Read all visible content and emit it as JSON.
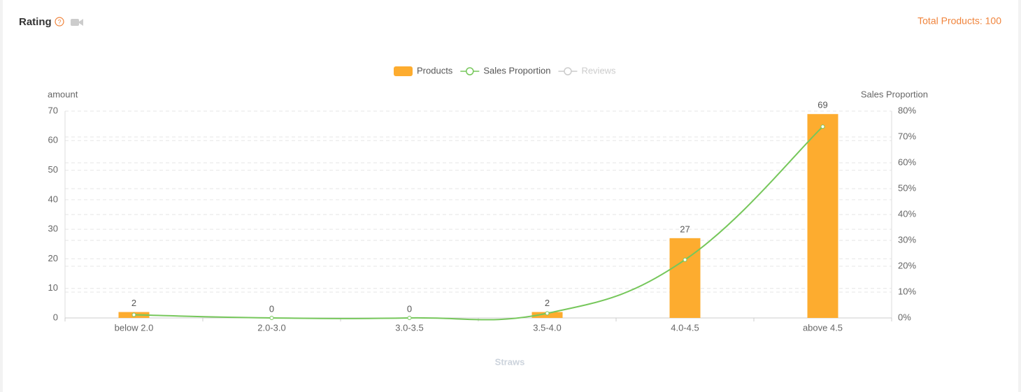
{
  "header": {
    "title": "Rating",
    "total": "Total Products: 100"
  },
  "chart_data": {
    "type": "bar_line",
    "categories": [
      "below 2.0",
      "2.0-3.0",
      "3.0-3.5",
      "3.5-4.0",
      "4.0-4.5",
      "above 4.5"
    ],
    "series": [
      {
        "name": "Products",
        "color": "#fdac2f",
        "type": "bar",
        "values": [
          2,
          0,
          0,
          2,
          27,
          69
        ]
      },
      {
        "name": "Sales Proportion",
        "color": "#76c75b",
        "type": "line",
        "axis": "y2",
        "values": [
          1.2,
          0,
          0,
          1.8,
          22.5,
          74
        ]
      },
      {
        "name": "Reviews",
        "color": "#d5d5d5",
        "type": "line",
        "hidden": true
      }
    ],
    "ylabel": "amount",
    "y2label": "Sales Proportion",
    "xlabel": "Straws",
    "ylim": [
      0,
      70
    ],
    "yticks": [
      0,
      10,
      20,
      30,
      40,
      50,
      60,
      70
    ],
    "y2lim": [
      0,
      80
    ],
    "y2ticks": [
      {
        "value": 0,
        "label": "0%"
      },
      {
        "value": 10,
        "label": "10%"
      },
      {
        "value": 20,
        "label": "20%"
      },
      {
        "value": 30,
        "label": "30%"
      },
      {
        "value": 40,
        "label": "40%"
      },
      {
        "value": 50,
        "label": "50%"
      },
      {
        "value": 60,
        "label": "60%"
      },
      {
        "value": 70,
        "label": "70%"
      },
      {
        "value": 80,
        "label": "80%"
      }
    ],
    "grid": true,
    "legend": "top"
  }
}
